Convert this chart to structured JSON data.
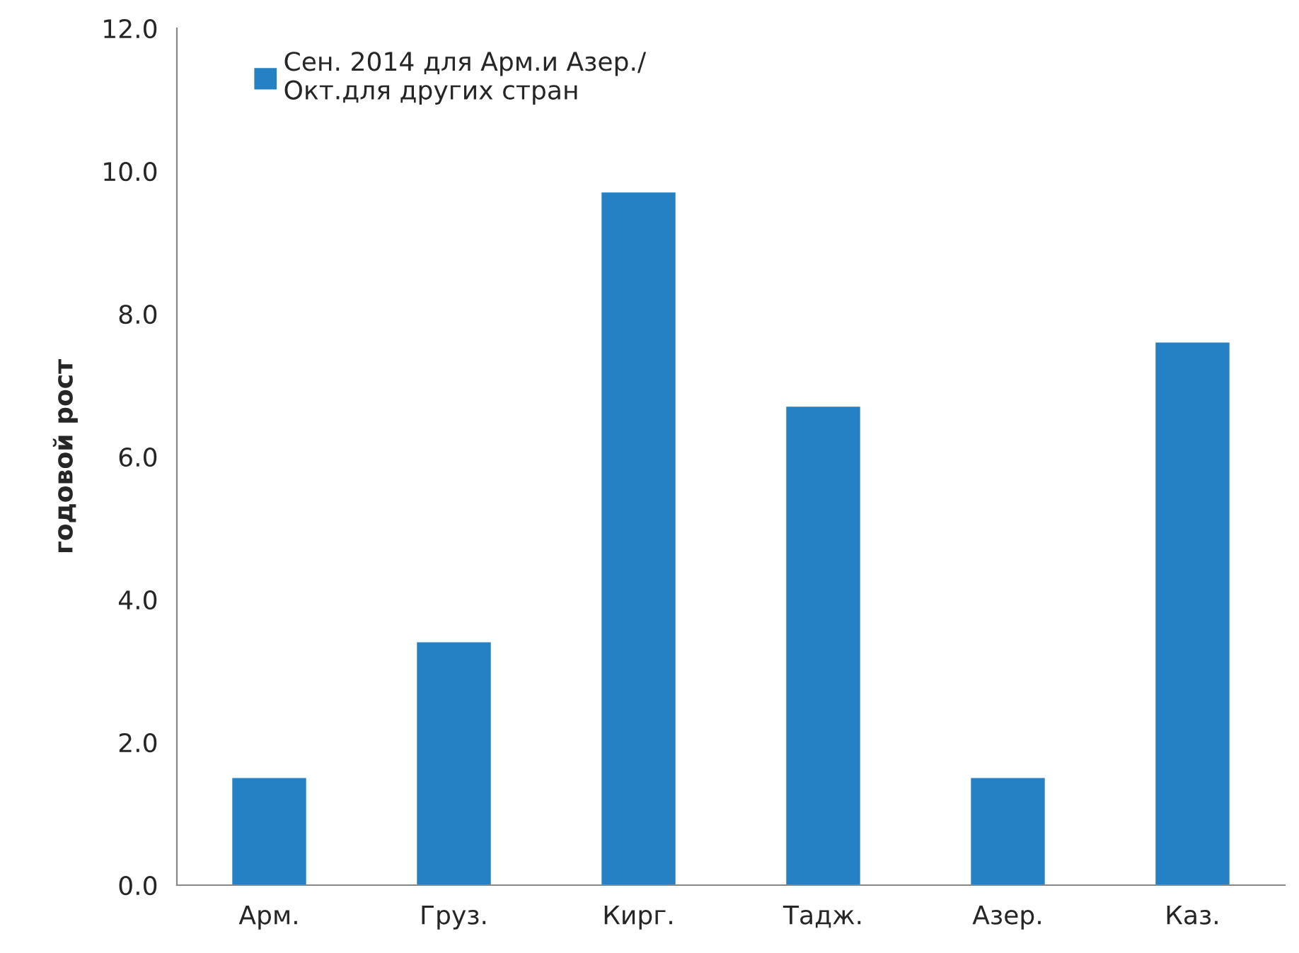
{
  "chart_data": {
    "type": "bar",
    "ylabel": "годовой рост",
    "categories": [
      "Арм.",
      "Груз.",
      "Кирг.",
      "Тадж.",
      "Азер.",
      "Каз."
    ],
    "series": [
      {
        "name": "Сен. 2014 для Арм.и Азер./\nОкт.для других стран",
        "color": "#2581c4",
        "values": [
          1.5,
          3.4,
          9.7,
          6.7,
          1.5,
          7.6
        ]
      }
    ],
    "ylim": [
      0,
      12
    ],
    "yticks": [
      {
        "value": 0,
        "label": "0.0"
      },
      {
        "value": 2,
        "label": "2.0"
      },
      {
        "value": 4,
        "label": "4.0"
      },
      {
        "value": 6,
        "label": "6.0"
      },
      {
        "value": 8,
        "label": "8.0"
      },
      {
        "value": 10,
        "label": "10.0"
      },
      {
        "value": 12,
        "label": "12.0"
      }
    ],
    "grid": false,
    "legend": "top left"
  }
}
